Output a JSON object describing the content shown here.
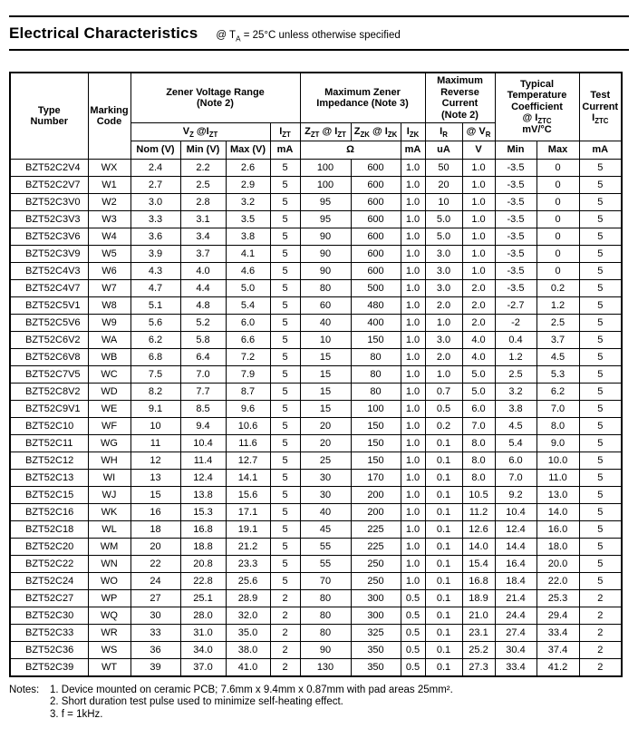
{
  "title": {
    "heading": "Electrical Characteristics",
    "condition": "@ T_{A} = 25°C unless otherwise specified"
  },
  "table": {
    "header": {
      "type_number": "Type\nNumber",
      "marking_code": "Marking\nCode",
      "zener_voltage_range": "Zener Voltage Range\n(Note 2)",
      "max_zener_impedance": "Maximum Zener\nImpedance (Note 3)",
      "max_reverse_current": "Maximum\nReverse\nCurrent\n(Note 2)",
      "temp_coefficient": "Typical\nTemperature\nCoefficient\n@ I_{ZTC}\nmV/°C",
      "test_current": "Test\nCurrent\nI_{ZTC}",
      "vz_at_izt": "V_{Z} @I_{ZT}",
      "izt": "I_{ZT}",
      "zzt_at_izt": "Z_{ZT} @ I_{ZT}",
      "zzk_at_izk": "Z_{ZK} @ I_{ZK}",
      "izk": "I_{ZK}",
      "ir": "I_{R}",
      "at_vr": "@ V_{R}",
      "nom_v": "Nom (V)",
      "min_v": "Min (V)",
      "max_v": "Max (V)",
      "izt_unit": "mA",
      "ohm_unit": "Ω",
      "izk_unit": "mA",
      "ir_unit": "uA",
      "vr_unit": "V",
      "tc_min": "Min",
      "tc_max": "Max",
      "iztc_unit": "mA"
    },
    "column_keys": [
      "type-number",
      "marking-code",
      "vz-nom",
      "vz-min",
      "vz-max",
      "izt-ma",
      "zzt-ohm",
      "zzk-ohm",
      "izk-ma",
      "ir-ua",
      "vr-v",
      "tc-min",
      "tc-max",
      "iztc-ma"
    ],
    "rows": [
      [
        "BZT52C2V4",
        "WX",
        "2.4",
        "2.2",
        "2.6",
        "5",
        "100",
        "600",
        "1.0",
        "50",
        "1.0",
        "-3.5",
        "0",
        "5"
      ],
      [
        "BZT52C2V7",
        "W1",
        "2.7",
        "2.5",
        "2.9",
        "5",
        "100",
        "600",
        "1.0",
        "20",
        "1.0",
        "-3.5",
        "0",
        "5"
      ],
      [
        "BZT52C3V0",
        "W2",
        "3.0",
        "2.8",
        "3.2",
        "5",
        "95",
        "600",
        "1.0",
        "10",
        "1.0",
        "-3.5",
        "0",
        "5"
      ],
      [
        "BZT52C3V3",
        "W3",
        "3.3",
        "3.1",
        "3.5",
        "5",
        "95",
        "600",
        "1.0",
        "5.0",
        "1.0",
        "-3.5",
        "0",
        "5"
      ],
      [
        "BZT52C3V6",
        "W4",
        "3.6",
        "3.4",
        "3.8",
        "5",
        "90",
        "600",
        "1.0",
        "5.0",
        "1.0",
        "-3.5",
        "0",
        "5"
      ],
      [
        "BZT52C3V9",
        "W5",
        "3.9",
        "3.7",
        "4.1",
        "5",
        "90",
        "600",
        "1.0",
        "3.0",
        "1.0",
        "-3.5",
        "0",
        "5"
      ],
      [
        "BZT52C4V3",
        "W6",
        "4.3",
        "4.0",
        "4.6",
        "5",
        "90",
        "600",
        "1.0",
        "3.0",
        "1.0",
        "-3.5",
        "0",
        "5"
      ],
      [
        "BZT52C4V7",
        "W7",
        "4.7",
        "4.4",
        "5.0",
        "5",
        "80",
        "500",
        "1.0",
        "3.0",
        "2.0",
        "-3.5",
        "0.2",
        "5"
      ],
      [
        "BZT52C5V1",
        "W8",
        "5.1",
        "4.8",
        "5.4",
        "5",
        "60",
        "480",
        "1.0",
        "2.0",
        "2.0",
        "-2.7",
        "1.2",
        "5"
      ],
      [
        "BZT52C5V6",
        "W9",
        "5.6",
        "5.2",
        "6.0",
        "5",
        "40",
        "400",
        "1.0",
        "1.0",
        "2.0",
        "-2",
        "2.5",
        "5"
      ],
      [
        "BZT52C6V2",
        "WA",
        "6.2",
        "5.8",
        "6.6",
        "5",
        "10",
        "150",
        "1.0",
        "3.0",
        "4.0",
        "0.4",
        "3.7",
        "5"
      ],
      [
        "BZT52C6V8",
        "WB",
        "6.8",
        "6.4",
        "7.2",
        "5",
        "15",
        "80",
        "1.0",
        "2.0",
        "4.0",
        "1.2",
        "4.5",
        "5"
      ],
      [
        "BZT52C7V5",
        "WC",
        "7.5",
        "7.0",
        "7.9",
        "5",
        "15",
        "80",
        "1.0",
        "1.0",
        "5.0",
        "2.5",
        "5.3",
        "5"
      ],
      [
        "BZT52C8V2",
        "WD",
        "8.2",
        "7.7",
        "8.7",
        "5",
        "15",
        "80",
        "1.0",
        "0.7",
        "5.0",
        "3.2",
        "6.2",
        "5"
      ],
      [
        "BZT52C9V1",
        "WE",
        "9.1",
        "8.5",
        "9.6",
        "5",
        "15",
        "100",
        "1.0",
        "0.5",
        "6.0",
        "3.8",
        "7.0",
        "5"
      ],
      [
        "BZT52C10",
        "WF",
        "10",
        "9.4",
        "10.6",
        "5",
        "20",
        "150",
        "1.0",
        "0.2",
        "7.0",
        "4.5",
        "8.0",
        "5"
      ],
      [
        "BZT52C11",
        "WG",
        "11",
        "10.4",
        "11.6",
        "5",
        "20",
        "150",
        "1.0",
        "0.1",
        "8.0",
        "5.4",
        "9.0",
        "5"
      ],
      [
        "BZT52C12",
        "WH",
        "12",
        "11.4",
        "12.7",
        "5",
        "25",
        "150",
        "1.0",
        "0.1",
        "8.0",
        "6.0",
        "10.0",
        "5"
      ],
      [
        "BZT52C13",
        "WI",
        "13",
        "12.4",
        "14.1",
        "5",
        "30",
        "170",
        "1.0",
        "0.1",
        "8.0",
        "7.0",
        "11.0",
        "5"
      ],
      [
        "BZT52C15",
        "WJ",
        "15",
        "13.8",
        "15.6",
        "5",
        "30",
        "200",
        "1.0",
        "0.1",
        "10.5",
        "9.2",
        "13.0",
        "5"
      ],
      [
        "BZT52C16",
        "WK",
        "16",
        "15.3",
        "17.1",
        "5",
        "40",
        "200",
        "1.0",
        "0.1",
        "11.2",
        "10.4",
        "14.0",
        "5"
      ],
      [
        "BZT52C18",
        "WL",
        "18",
        "16.8",
        "19.1",
        "5",
        "45",
        "225",
        "1.0",
        "0.1",
        "12.6",
        "12.4",
        "16.0",
        "5"
      ],
      [
        "BZT52C20",
        "WM",
        "20",
        "18.8",
        "21.2",
        "5",
        "55",
        "225",
        "1.0",
        "0.1",
        "14.0",
        "14.4",
        "18.0",
        "5"
      ],
      [
        "BZT52C22",
        "WN",
        "22",
        "20.8",
        "23.3",
        "5",
        "55",
        "250",
        "1.0",
        "0.1",
        "15.4",
        "16.4",
        "20.0",
        "5"
      ],
      [
        "BZT52C24",
        "WO",
        "24",
        "22.8",
        "25.6",
        "5",
        "70",
        "250",
        "1.0",
        "0.1",
        "16.8",
        "18.4",
        "22.0",
        "5"
      ],
      [
        "BZT52C27",
        "WP",
        "27",
        "25.1",
        "28.9",
        "2",
        "80",
        "300",
        "0.5",
        "0.1",
        "18.9",
        "21.4",
        "25.3",
        "2"
      ],
      [
        "BZT52C30",
        "WQ",
        "30",
        "28.0",
        "32.0",
        "2",
        "80",
        "300",
        "0.5",
        "0.1",
        "21.0",
        "24.4",
        "29.4",
        "2"
      ],
      [
        "BZT52C33",
        "WR",
        "33",
        "31.0",
        "35.0",
        "2",
        "80",
        "325",
        "0.5",
        "0.1",
        "23.1",
        "27.4",
        "33.4",
        "2"
      ],
      [
        "BZT52C36",
        "WS",
        "36",
        "34.0",
        "38.0",
        "2",
        "90",
        "350",
        "0.5",
        "0.1",
        "25.2",
        "30.4",
        "37.4",
        "2"
      ],
      [
        "BZT52C39",
        "WT",
        "39",
        "37.0",
        "41.0",
        "2",
        "130",
        "350",
        "0.5",
        "0.1",
        "27.3",
        "33.4",
        "41.2",
        "2"
      ]
    ]
  },
  "notes": {
    "label": "Notes:",
    "items": [
      "1. Device mounted on ceramic PCB; 7.6mm x 9.4mm x 0.87mm with pad areas 25mm².",
      "2. Short duration test pulse used to minimize self-heating effect.",
      "3. f = 1kHz."
    ]
  }
}
